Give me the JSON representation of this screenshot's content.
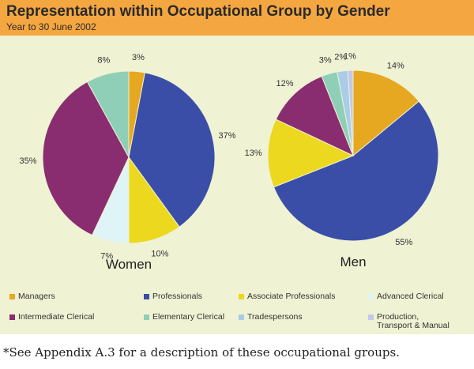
{
  "header": {
    "title": "Representation within Occupational Group by Gender",
    "subtitle": "Year to 30 June 2002"
  },
  "chart_data": [
    {
      "type": "pie",
      "title": "Women",
      "categories": [
        "Managers",
        "Professionals",
        "Associate Professionals",
        "Advanced Clerical",
        "Intermediate Clerical",
        "Elementary Clerical",
        "Tradespersons",
        "Production, Transport & Manual"
      ],
      "values": [
        3,
        37,
        10,
        7,
        35,
        8,
        0,
        0
      ],
      "labels": [
        "3%",
        "37%",
        "10%",
        "7%",
        "35%",
        "8%",
        "",
        ""
      ]
    },
    {
      "type": "pie",
      "title": "Men",
      "categories": [
        "Managers",
        "Professionals",
        "Associate Professionals",
        "Advanced Clerical",
        "Intermediate Clerical",
        "Elementary Clerical",
        "Tradespersons",
        "Production, Transport & Manual"
      ],
      "values": [
        14,
        55,
        13,
        0,
        12,
        3,
        2,
        1
      ],
      "labels": [
        "14%",
        "55%",
        "13%",
        "",
        "12%",
        "3%",
        "2%",
        "1%"
      ]
    }
  ],
  "colors": [
    "#e6a820",
    "#3a4ea8",
    "#ecd81e",
    "#dff4f6",
    "#8a2d70",
    "#8fcfb8",
    "#a9cde8",
    "#c4c8ea"
  ],
  "legend": [
    "Managers",
    "Professionals",
    "Associate Professionals",
    "Advanced Clerical",
    "Intermediate Clerical",
    "Elementary Clerical",
    "Tradespersons",
    "Production,\nTransport & Manual"
  ],
  "footnote": "*See Appendix A.3 for a description of these occupational groups."
}
